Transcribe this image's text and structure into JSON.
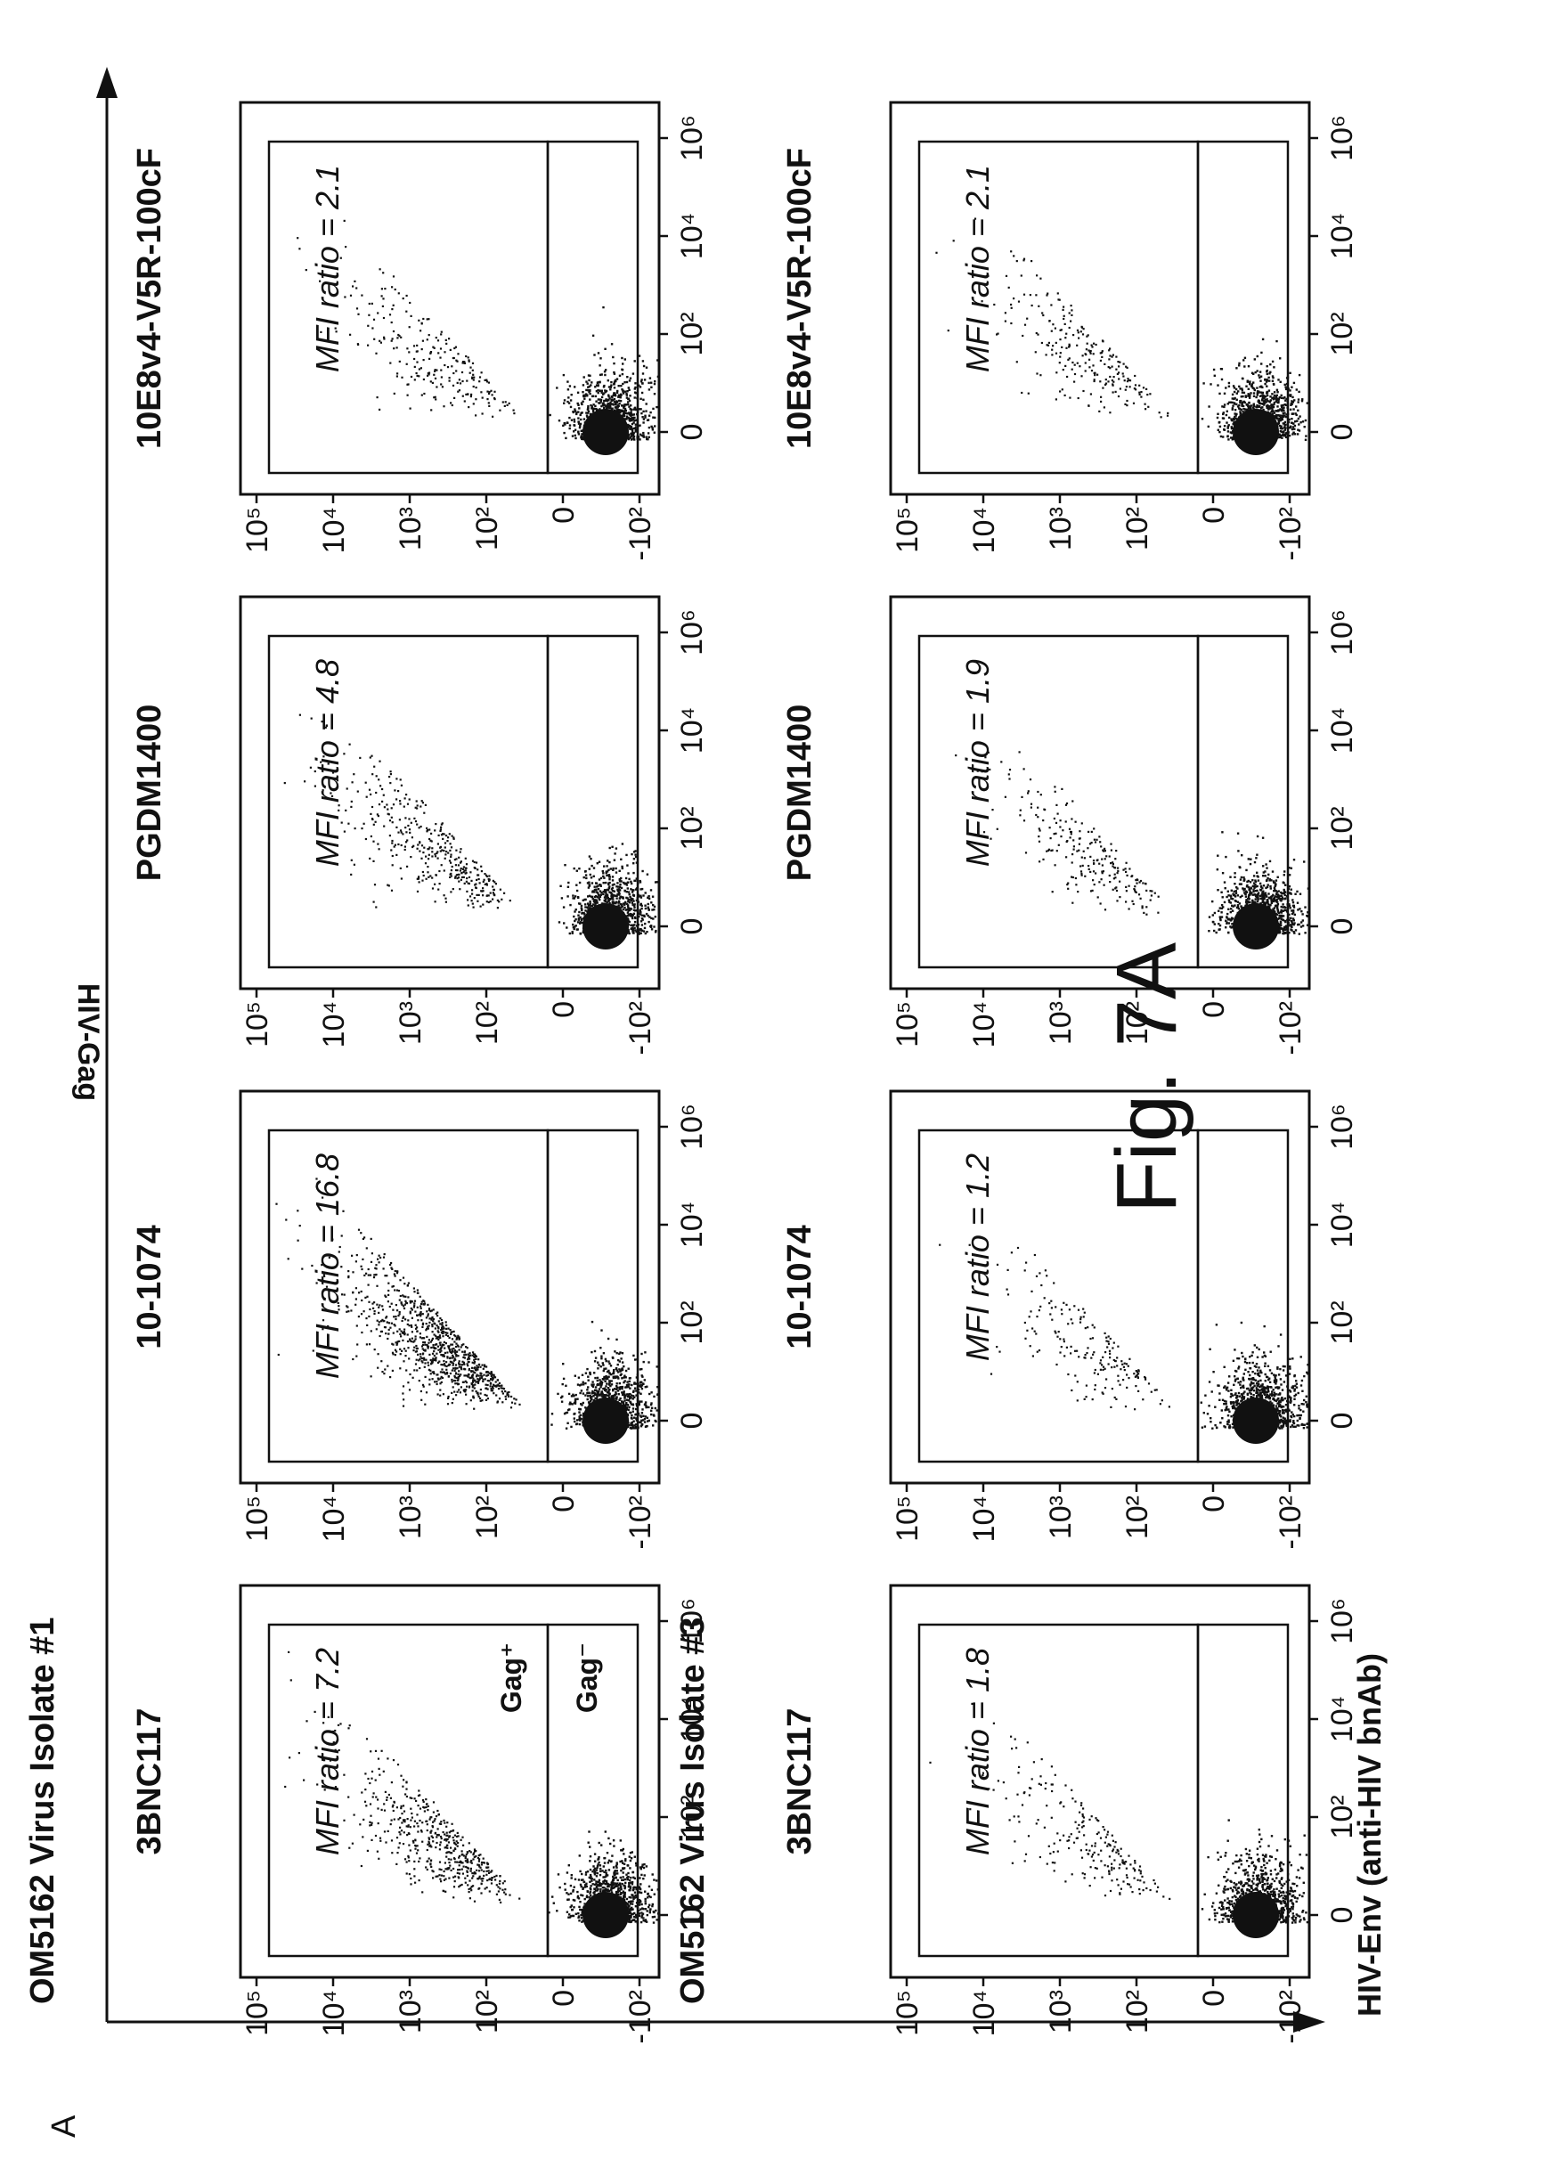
{
  "figure": {
    "panel_letter": "A",
    "figure_label": "Fig. 7A",
    "y_axis_title": "HIV-Gag",
    "x_axis_title": "HIV-Env (anti-HIV bnAb)",
    "colors": {
      "ink": "#111111",
      "paper": "#ffffff"
    }
  },
  "chart_data": [
    {
      "type": "scatter",
      "row_title": "OM5162 Virus Isolate #1",
      "xlabel": "HIV-Env (anti-HIV bnAb)",
      "ylabel": "HIV-Gag",
      "x_tick_labels": [
        "0",
        "10²",
        "10⁴",
        "10⁶"
      ],
      "y_tick_labels": [
        "10⁵",
        "10⁴",
        "10³",
        "10²",
        "0",
        "-10²"
      ],
      "gates": [
        "Gag⁺",
        "Gag⁻"
      ],
      "panels": [
        {
          "title": "3BNC117",
          "annotation_label": "MFI ratio",
          "mfi_ratio": "7.2",
          "show_gate_labels": true
        },
        {
          "title": "10-1074",
          "annotation_label": "MFI ratio",
          "mfi_ratio": "16.8",
          "show_gate_labels": false
        },
        {
          "title": "PGDM1400",
          "annotation_label": "MFI ratio",
          "mfi_ratio": "4.8",
          "show_gate_labels": false
        },
        {
          "title": "10E8v4-V5R-100cF",
          "annotation_label": "MFI ratio",
          "mfi_ratio": "2.1",
          "show_gate_labels": false
        }
      ]
    },
    {
      "type": "scatter",
      "row_title": "OM5162 Virus Isolate #3",
      "xlabel": "HIV-Env (anti-HIV bnAb)",
      "ylabel": "HIV-Gag",
      "x_tick_labels": [
        "0",
        "10²",
        "10⁴",
        "10⁶"
      ],
      "y_tick_labels": [
        "10⁵",
        "10⁴",
        "10³",
        "10²",
        "0",
        "-10²"
      ],
      "gates": [
        "Gag⁺",
        "Gag⁻"
      ],
      "panels": [
        {
          "title": "3BNC117",
          "annotation_label": "MFI ratio",
          "mfi_ratio": "1.8",
          "show_gate_labels": false
        },
        {
          "title": "10-1074",
          "annotation_label": "MFI ratio",
          "mfi_ratio": "1.2",
          "show_gate_labels": false
        },
        {
          "title": "PGDM1400",
          "annotation_label": "MFI ratio",
          "mfi_ratio": "1.9",
          "show_gate_labels": false
        },
        {
          "title": "10E8v4-V5R-100cF",
          "annotation_label": "MFI ratio",
          "mfi_ratio": "2.1",
          "show_gate_labels": false
        }
      ]
    }
  ]
}
